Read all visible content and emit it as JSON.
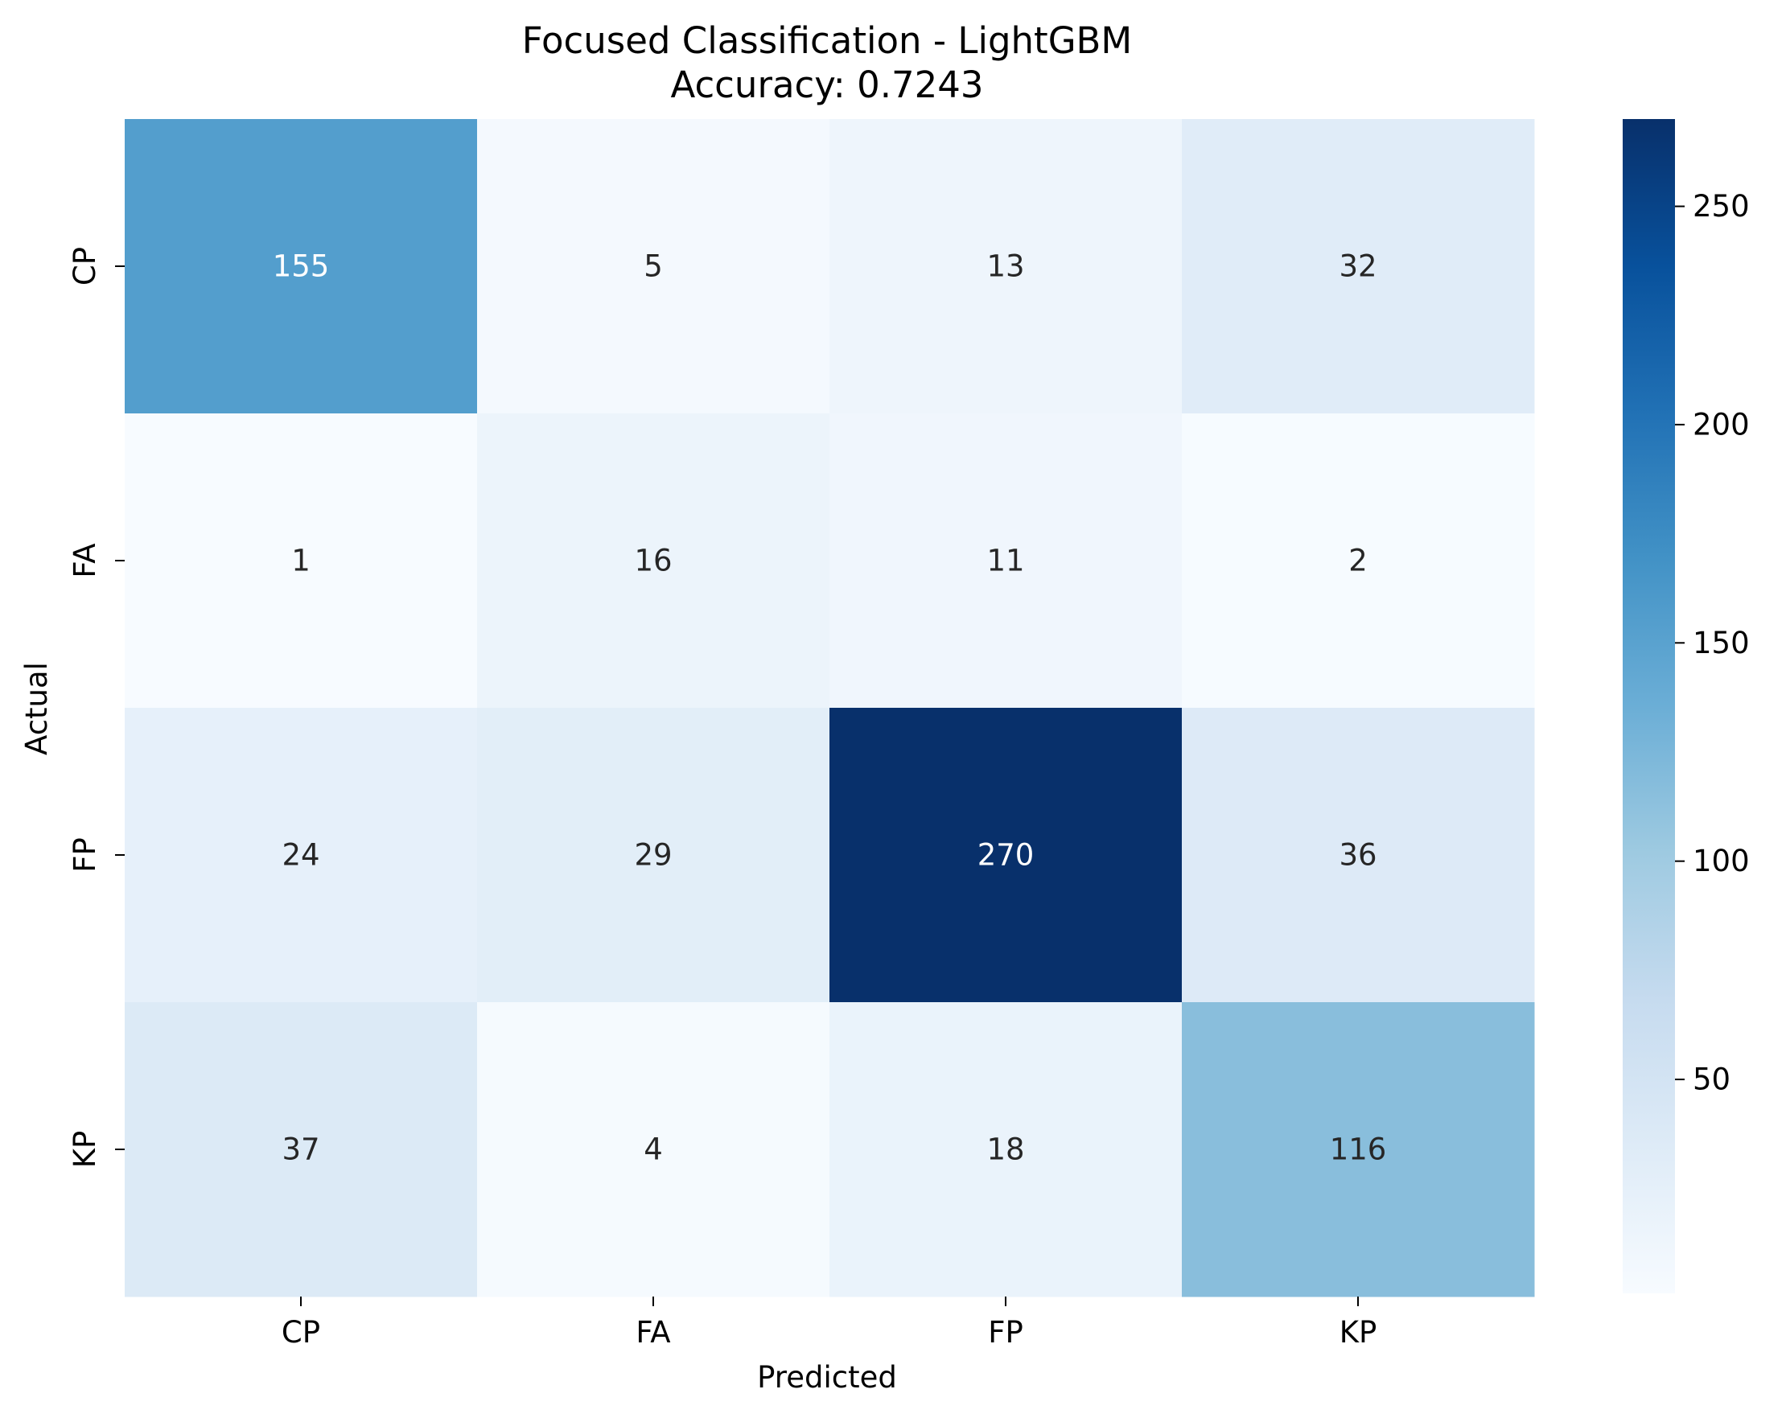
{
  "chart_data": {
    "type": "heatmap",
    "title_line1": "Focused Classification - LightGBM",
    "title_line2": "Accuracy: 0.7243",
    "xlabel": "Predicted",
    "ylabel": "Actual",
    "x_categories": [
      "CP",
      "FA",
      "FP",
      "KP"
    ],
    "y_categories": [
      "CP",
      "FA",
      "FP",
      "KP"
    ],
    "matrix": [
      [
        155,
        5,
        13,
        32
      ],
      [
        1,
        16,
        11,
        2
      ],
      [
        24,
        29,
        270,
        36
      ],
      [
        37,
        4,
        18,
        116
      ]
    ],
    "colormap": "Blues",
    "color_min": 1,
    "color_max": 270,
    "colorbar_ticks": [
      50,
      100,
      150,
      200,
      250
    ],
    "text_dark_color": "#262626",
    "text_light_color": "#ffffff"
  }
}
